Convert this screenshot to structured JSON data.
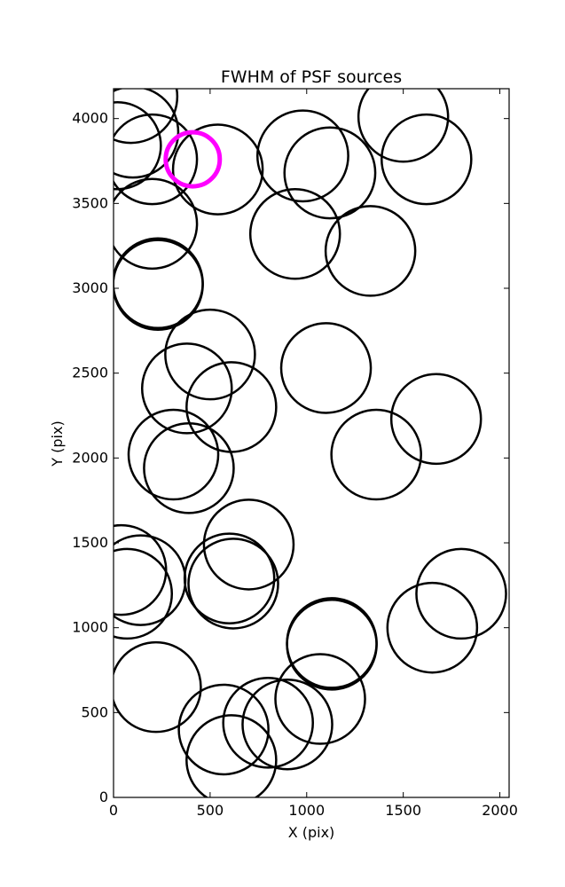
{
  "chart_data": {
    "type": "scatter",
    "title": "FWHM of PSF sources",
    "xlabel": "X (pix)",
    "ylabel": "Y (pix)",
    "xlim": [
      0,
      2048
    ],
    "ylim": [
      0,
      4176
    ],
    "xticks": [
      0,
      500,
      1000,
      1500,
      2000
    ],
    "yticks": [
      0,
      500,
      1000,
      1500,
      2000,
      2500,
      3000,
      3500,
      4000
    ],
    "marker": "open circle",
    "marker_color": "#000000",
    "highlight_color": "#ff00ff",
    "grid": false,
    "sources": [
      {
        "x": 90,
        "y": 4130,
        "r": 240
      },
      {
        "x": 100,
        "y": 3920,
        "r": 235
      },
      {
        "x": 20,
        "y": 3840,
        "r": 225
      },
      {
        "x": 200,
        "y": 3760,
        "r": 232
      },
      {
        "x": 540,
        "y": 3700,
        "r": 232
      },
      {
        "x": 980,
        "y": 3780,
        "r": 235
      },
      {
        "x": 1120,
        "y": 3680,
        "r": 235
      },
      {
        "x": 1500,
        "y": 4010,
        "r": 232
      },
      {
        "x": 1620,
        "y": 3760,
        "r": 232
      },
      {
        "x": 200,
        "y": 3380,
        "r": 232
      },
      {
        "x": 940,
        "y": 3320,
        "r": 232
      },
      {
        "x": 1330,
        "y": 3220,
        "r": 232
      },
      {
        "x": 230,
        "y": 3030,
        "r": 232
      },
      {
        "x": 230,
        "y": 3020,
        "r": 232
      },
      {
        "x": 500,
        "y": 2610,
        "r": 232
      },
      {
        "x": 1100,
        "y": 2530,
        "r": 232
      },
      {
        "x": 380,
        "y": 2410,
        "r": 232
      },
      {
        "x": 610,
        "y": 2300,
        "r": 232
      },
      {
        "x": 1670,
        "y": 2230,
        "r": 232
      },
      {
        "x": 310,
        "y": 2020,
        "r": 232
      },
      {
        "x": 1360,
        "y": 2020,
        "r": 232
      },
      {
        "x": 390,
        "y": 1940,
        "r": 232
      },
      {
        "x": 700,
        "y": 1490,
        "r": 232
      },
      {
        "x": 40,
        "y": 1340,
        "r": 232
      },
      {
        "x": 140,
        "y": 1280,
        "r": 232
      },
      {
        "x": 600,
        "y": 1290,
        "r": 232
      },
      {
        "x": 70,
        "y": 1200,
        "r": 232
      },
      {
        "x": 620,
        "y": 1260,
        "r": 232
      },
      {
        "x": 1800,
        "y": 1200,
        "r": 232
      },
      {
        "x": 1130,
        "y": 910,
        "r": 232
      },
      {
        "x": 1650,
        "y": 1000,
        "r": 232
      },
      {
        "x": 1130,
        "y": 900,
        "r": 232
      },
      {
        "x": 220,
        "y": 650,
        "r": 232
      },
      {
        "x": 1070,
        "y": 580,
        "r": 232
      },
      {
        "x": 570,
        "y": 400,
        "r": 232
      },
      {
        "x": 800,
        "y": 440,
        "r": 232
      },
      {
        "x": 900,
        "y": 430,
        "r": 232
      },
      {
        "x": 610,
        "y": 220,
        "r": 232
      }
    ],
    "highlight": {
      "x": 410,
      "y": 3760,
      "r": 140
    }
  }
}
